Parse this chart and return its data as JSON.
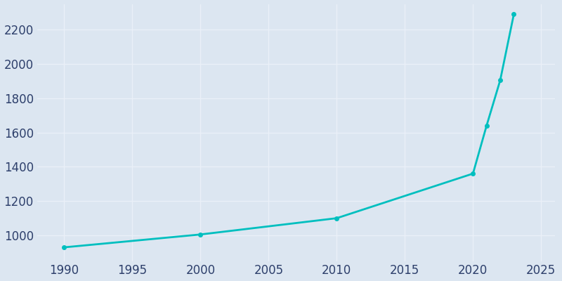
{
  "years": [
    1990,
    2000,
    2010,
    2020,
    2021,
    2022,
    2023
  ],
  "population": [
    930,
    1005,
    1100,
    1360,
    1640,
    1905,
    2290
  ],
  "line_color": "#00BFBF",
  "marker": "o",
  "marker_size": 4,
  "line_width": 2,
  "background_color": "#dce6f1",
  "grid_color": "#eaf0f8",
  "xlim": [
    1988,
    2026
  ],
  "ylim": [
    850,
    2350
  ],
  "xticks": [
    1990,
    1995,
    2000,
    2005,
    2010,
    2015,
    2020,
    2025
  ],
  "yticks": [
    1000,
    1200,
    1400,
    1600,
    1800,
    2000,
    2200
  ],
  "tick_label_color": "#2d3f6b",
  "tick_fontsize": 12,
  "outer_bg": "#dce6f1"
}
